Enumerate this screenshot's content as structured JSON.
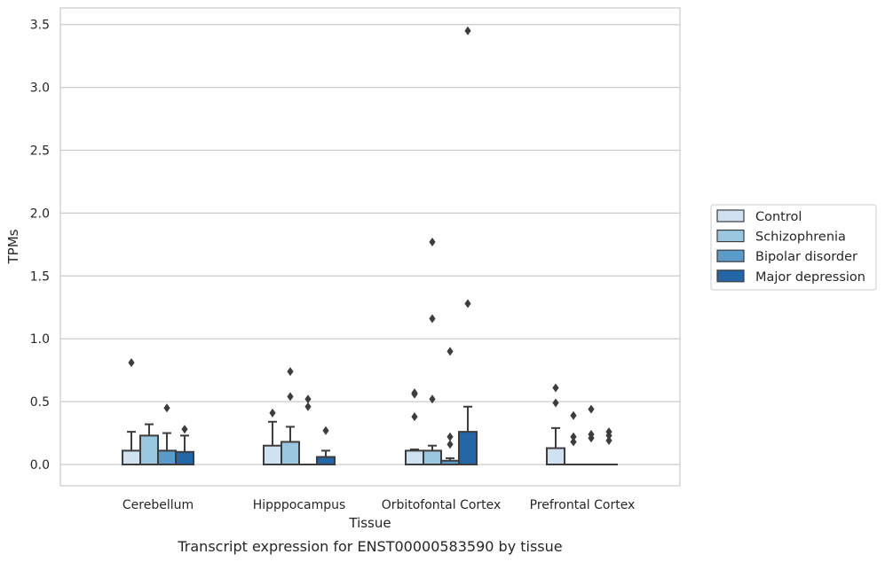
{
  "chart_data": {
    "type": "box",
    "xlabel": "Tissue",
    "ylabel": "TPMs",
    "caption": "Transcript expression for ENST00000583590 by tissue",
    "ylim": [
      -0.17,
      3.63
    ],
    "yticks": [
      0.0,
      0.5,
      1.0,
      1.5,
      2.0,
      2.5,
      3.0,
      3.5
    ],
    "ytick_labels": [
      "0.0",
      "0.5",
      "1.0",
      "1.5",
      "2.0",
      "2.5",
      "3.0",
      "3.5"
    ],
    "grid": "horizontal",
    "legend_position": "right",
    "categories": [
      "Cerebellum",
      "Hipppocampus",
      "Orbitofontal Cortex",
      "Prefrontal Cortex"
    ],
    "series": [
      {
        "name": "Control",
        "color": "#d0e1f2",
        "boxes": [
          {
            "q1": 0.0,
            "median": 0.0,
            "q3": 0.11,
            "whisker_low": 0.0,
            "whisker_high": 0.26,
            "outliers": [
              0.81
            ]
          },
          {
            "q1": 0.0,
            "median": 0.0,
            "q3": 0.15,
            "whisker_low": 0.0,
            "whisker_high": 0.34,
            "outliers": [
              0.41
            ]
          },
          {
            "q1": 0.0,
            "median": 0.0,
            "q3": 0.11,
            "whisker_low": 0.0,
            "whisker_high": 0.12,
            "outliers": [
              0.57,
              0.56,
              0.38
            ]
          },
          {
            "q1": 0.0,
            "median": 0.0,
            "q3": 0.13,
            "whisker_low": 0.0,
            "whisker_high": 0.29,
            "outliers": [
              0.61,
              0.49
            ]
          }
        ]
      },
      {
        "name": "Schizophrenia",
        "color": "#9ac8e0",
        "boxes": [
          {
            "q1": 0.0,
            "median": 0.0,
            "q3": 0.23,
            "whisker_low": 0.0,
            "whisker_high": 0.32,
            "outliers": []
          },
          {
            "q1": 0.0,
            "median": 0.0,
            "q3": 0.18,
            "whisker_low": 0.0,
            "whisker_high": 0.3,
            "outliers": [
              0.74,
              0.54
            ]
          },
          {
            "q1": 0.0,
            "median": 0.0,
            "q3": 0.11,
            "whisker_low": 0.0,
            "whisker_high": 0.15,
            "outliers": [
              1.77,
              1.16,
              0.52
            ]
          },
          {
            "q1": 0.0,
            "median": 0.0,
            "q3": 0.0,
            "whisker_low": 0.0,
            "whisker_high": 0.0,
            "outliers": [
              0.39,
              0.22,
              0.18
            ]
          }
        ]
      },
      {
        "name": "Bipolar disorder",
        "color": "#5a9bc9",
        "boxes": [
          {
            "q1": 0.0,
            "median": 0.0,
            "q3": 0.11,
            "whisker_low": 0.0,
            "whisker_high": 0.25,
            "outliers": [
              0.45
            ]
          },
          {
            "q1": 0.0,
            "median": 0.0,
            "q3": 0.0,
            "whisker_low": 0.0,
            "whisker_high": 0.0,
            "outliers": [
              0.52,
              0.46
            ]
          },
          {
            "q1": 0.0,
            "median": 0.0,
            "q3": 0.03,
            "whisker_low": 0.0,
            "whisker_high": 0.05,
            "outliers": [
              0.9,
              0.22,
              0.16
            ]
          },
          {
            "q1": 0.0,
            "median": 0.0,
            "q3": 0.0,
            "whisker_low": 0.0,
            "whisker_high": 0.0,
            "outliers": [
              0.44,
              0.24,
              0.21
            ]
          }
        ]
      },
      {
        "name": "Major depression",
        "color": "#2465a5",
        "boxes": [
          {
            "q1": 0.0,
            "median": 0.0,
            "q3": 0.1,
            "whisker_low": 0.0,
            "whisker_high": 0.23,
            "outliers": [
              0.28
            ]
          },
          {
            "q1": 0.0,
            "median": 0.0,
            "q3": 0.06,
            "whisker_low": 0.0,
            "whisker_high": 0.11,
            "outliers": [
              0.27
            ]
          },
          {
            "q1": 0.0,
            "median": 0.0,
            "q3": 0.26,
            "whisker_low": 0.0,
            "whisker_high": 0.46,
            "outliers": [
              3.45,
              1.28
            ]
          },
          {
            "q1": 0.0,
            "median": 0.0,
            "q3": 0.0,
            "whisker_low": 0.0,
            "whisker_high": 0.0,
            "outliers": [
              0.26,
              0.23,
              0.19
            ]
          }
        ]
      }
    ]
  }
}
